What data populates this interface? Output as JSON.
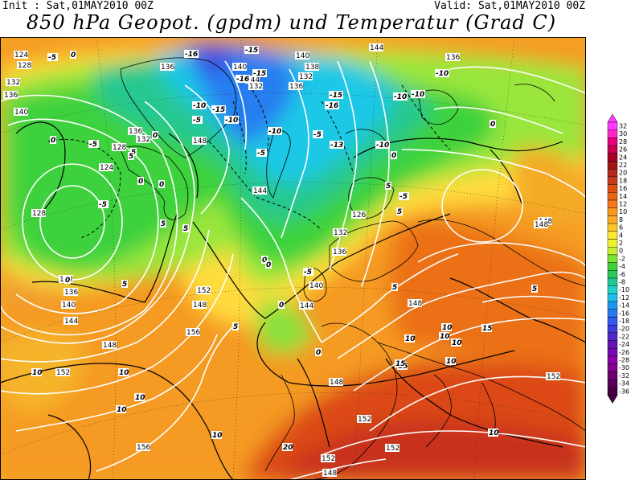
{
  "header": {
    "init": "Init : Sat,01MAY2010 00Z",
    "valid": "Valid: Sat,01MAY2010 00Z",
    "title": "850 hPa Geopot. (gpdm) und Temperatur (Grad C)"
  },
  "legend": {
    "values": [
      "32",
      "30",
      "28",
      "26",
      "24",
      "22",
      "20",
      "18",
      "16",
      "14",
      "12",
      "10",
      "8",
      "6",
      "4",
      "2",
      "0",
      "-2",
      "-4",
      "-6",
      "-8",
      "-10",
      "-12",
      "-14",
      "-16",
      "-18",
      "-20",
      "-22",
      "-24",
      "-26",
      "-28",
      "-30",
      "-32",
      "-34",
      "-36"
    ],
    "colors": [
      "#ff3cff",
      "#ff28c8",
      "#e6007d",
      "#c80050",
      "#aa0028",
      "#a01414",
      "#b4281e",
      "#c83c1e",
      "#dc5014",
      "#eb6414",
      "#f5781e",
      "#fa961e",
      "#ffaa28",
      "#ffc828",
      "#ffe632",
      "#f0f032",
      "#c8f032",
      "#78e632",
      "#3cd23c",
      "#28c85a",
      "#1ec896",
      "#1ed2c8",
      "#1ebeeb",
      "#1e96f0",
      "#2878f0",
      "#325af0",
      "#3c3cdc",
      "#5028c8",
      "#6414b4",
      "#780ab4",
      "#8c00aa",
      "#82008c",
      "#6e006e",
      "#5a005a",
      "#460046"
    ]
  },
  "map": {
    "geopotential_labels": [
      "124",
      "128",
      "132",
      "136",
      "140",
      "136",
      "132",
      "128",
      "124",
      "128",
      "132",
      "136",
      "140",
      "144",
      "148",
      "152",
      "156",
      "136",
      "148",
      "140",
      "144",
      "144",
      "140",
      "138",
      "132",
      "136",
      "144",
      "136",
      "132",
      "126",
      "132",
      "136",
      "140",
      "144",
      "148",
      "152",
      "148",
      "152",
      "148",
      "156",
      "152",
      "148",
      "148",
      "152",
      "152",
      "148"
    ],
    "temperature_labels": [
      "0",
      "-5",
      "0",
      "5",
      "-5",
      "0",
      "5",
      "0",
      "-5",
      "0",
      "-15",
      "-16",
      "-10",
      "-15",
      "-16",
      "-15",
      "-10",
      "-5",
      "-10",
      "-5",
      "-5",
      "-10",
      "-13",
      "-16",
      "-15",
      "-10",
      "-10",
      "-10",
      "-5",
      "0",
      "-5",
      "0",
      "5",
      "0",
      "5",
      "0",
      "0",
      "5",
      "5",
      "5",
      "10",
      "10",
      "10",
      "10",
      "10",
      "10",
      "10",
      "15",
      "15",
      "20",
      "10",
      "10",
      "5",
      "10",
      "10",
      "15",
      "5",
      "0",
      "0",
      "5"
    ]
  }
}
